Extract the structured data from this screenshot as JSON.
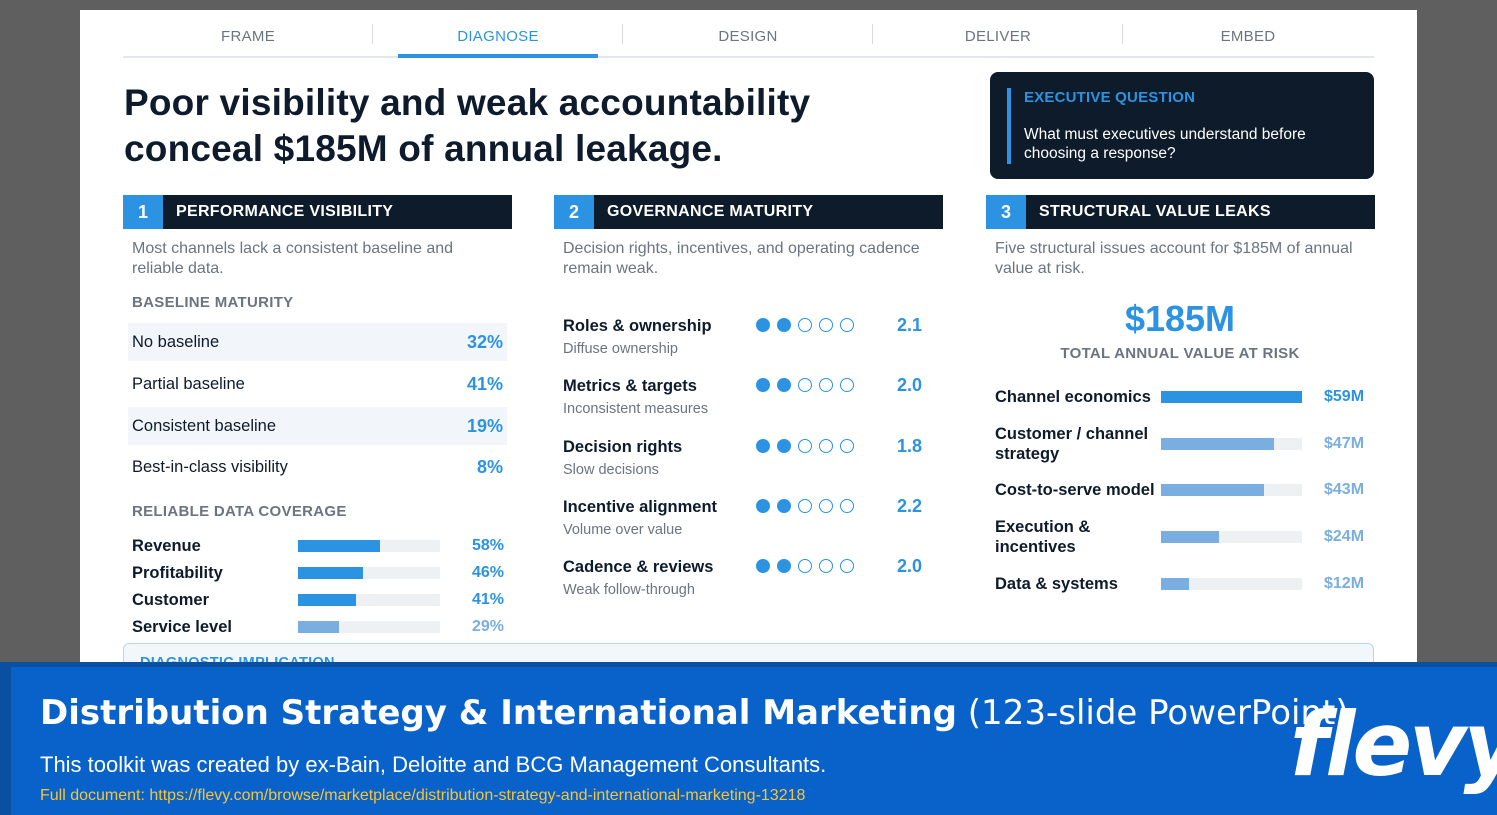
{
  "tabs": [
    {
      "label": "FRAME"
    },
    {
      "label": "DIAGNOSE"
    },
    {
      "label": "DESIGN"
    },
    {
      "label": "DELIVER"
    },
    {
      "label": "EMBED"
    }
  ],
  "active_tab": "DIAGNOSE",
  "headline": "Poor visibility and weak accountability conceal $185M of annual leakage.",
  "exec_question": {
    "title": "EXECUTIVE QUESTION",
    "text": "What must executives understand before choosing a response?"
  },
  "sections": {
    "visibility": {
      "num": "1",
      "title": "PERFORMANCE VISIBILITY",
      "desc": "Most channels lack a consistent baseline and reliable data.",
      "baseline_label": "BASELINE MATURITY",
      "baseline": [
        {
          "label": "No baseline",
          "value": "32%"
        },
        {
          "label": "Partial baseline",
          "value": "41%"
        },
        {
          "label": "Consistent baseline",
          "value": "19%"
        },
        {
          "label": "Best-in-class visibility",
          "value": "8%"
        }
      ],
      "coverage_label": "RELIABLE DATA COVERAGE",
      "coverage": [
        {
          "label": "Revenue",
          "value": "58%",
          "fraction": 0.58,
          "style": "dark"
        },
        {
          "label": "Profitability",
          "value": "46%",
          "fraction": 0.46,
          "style": "dark"
        },
        {
          "label": "Customer",
          "value": "41%",
          "fraction": 0.41,
          "style": "dark"
        },
        {
          "label": "Service level",
          "value": "29%",
          "fraction": 0.29,
          "style": "light"
        }
      ]
    },
    "governance": {
      "num": "2",
      "title": "GOVERNANCE MATURITY",
      "desc": "Decision rights, incentives, and operating cadence remain weak.",
      "rows": [
        {
          "name": "Roles & ownership",
          "sub": "Diffuse ownership",
          "score": "2.1",
          "filled": 2
        },
        {
          "name": "Metrics & targets",
          "sub": "Inconsistent measures",
          "score": "2.0",
          "filled": 2
        },
        {
          "name": "Decision rights",
          "sub": "Slow decisions",
          "score": "1.8",
          "filled": 2
        },
        {
          "name": "Incentive alignment",
          "sub": "Volume over value",
          "score": "2.2",
          "filled": 2
        },
        {
          "name": "Cadence & reviews",
          "sub": "Weak follow-through",
          "score": "2.0",
          "filled": 2
        }
      ]
    },
    "leaks": {
      "num": "3",
      "title": "STRUCTURAL VALUE LEAKS",
      "desc": "Five structural issues account for $185M of annual value at risk.",
      "total": "$185M",
      "total_label": "TOTAL ANNUAL VALUE AT RISK",
      "rows": [
        {
          "label": "Channel economics",
          "value": "$59M",
          "fraction": 1.0,
          "style": "dark"
        },
        {
          "label": "Customer / channel strategy",
          "value": "$47M",
          "fraction": 0.8,
          "style": "light"
        },
        {
          "label": "Cost-to-serve model",
          "value": "$43M",
          "fraction": 0.73,
          "style": "light"
        },
        {
          "label": "Execution & incentives",
          "value": "$24M",
          "fraction": 0.41,
          "style": "light"
        },
        {
          "label": "Data & systems",
          "value": "$12M",
          "fraction": 0.2,
          "style": "light"
        }
      ]
    }
  },
  "implication": {
    "title": "DIAGNOSTIC IMPLICATION"
  },
  "banner": {
    "title_bold": "Distribution Strategy & International Marketing",
    "title_rest": "(123-slide PowerPoint)",
    "subtitle": "This toolkit was created by ex-Bain, Deloitte and BCG Management Consultants.",
    "link": "Full document: https://flevy.com/browse/marketplace/distribution-strategy-and-international-marketing-13218",
    "logo": "flevy"
  },
  "colors": {
    "accent": "#2c93e2",
    "navy": "#0d1b2a",
    "banner": "#0862c9",
    "link": "#f5c43c"
  }
}
